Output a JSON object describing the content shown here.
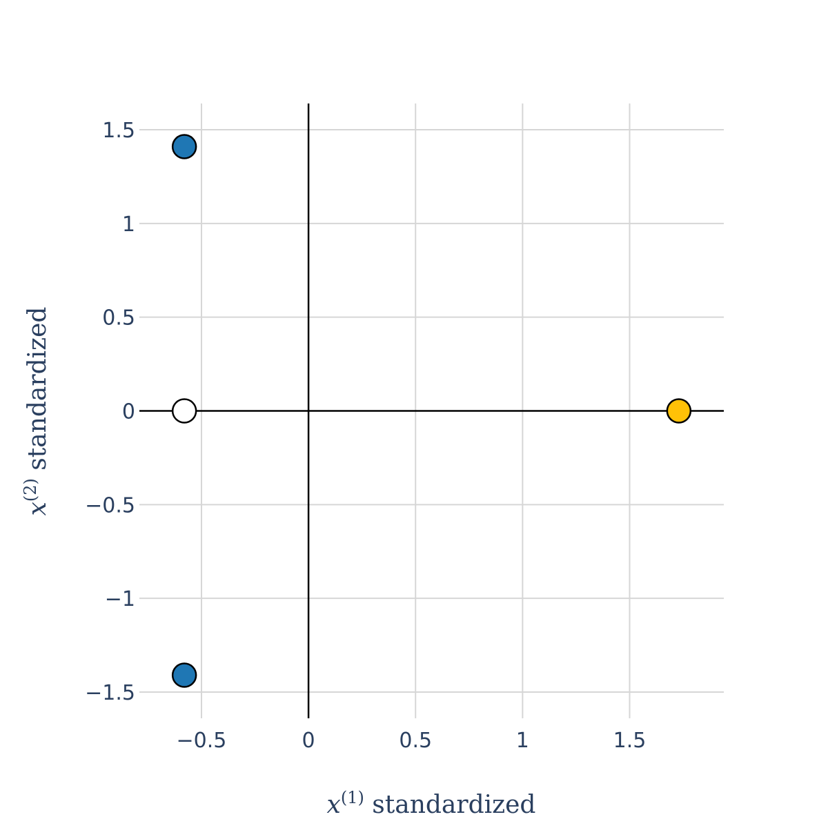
{
  "chart_data": {
    "type": "scatter",
    "xlabel": {
      "var": "x",
      "sup": "(1)",
      "text": " standardized"
    },
    "ylabel": {
      "var": "x",
      "sup": "(2)",
      "text": " standardized"
    },
    "xlim": [
      -0.79,
      1.94
    ],
    "ylim": [
      -1.64,
      1.64
    ],
    "xticks": [
      {
        "value": -0.5,
        "label": "−0.5"
      },
      {
        "value": 0,
        "label": "0"
      },
      {
        "value": 0.5,
        "label": "0.5"
      },
      {
        "value": 1,
        "label": "1"
      },
      {
        "value": 1.5,
        "label": "1.5"
      }
    ],
    "yticks": [
      {
        "value": 1.5,
        "label": "1.5"
      },
      {
        "value": 1,
        "label": "1"
      },
      {
        "value": 0.5,
        "label": "0.5"
      },
      {
        "value": 0,
        "label": "0"
      },
      {
        "value": -0.5,
        "label": "−0.5"
      },
      {
        "value": -1,
        "label": "−1"
      },
      {
        "value": -1.5,
        "label": "−1.5"
      }
    ],
    "grid": true,
    "zero_lines": true,
    "points": [
      {
        "x": -0.58,
        "y": 1.41,
        "color": "#1f77b4"
      },
      {
        "x": -0.58,
        "y": -1.41,
        "color": "#1f77b4"
      },
      {
        "x": -0.58,
        "y": 0,
        "color": "#ffffff"
      },
      {
        "x": 1.73,
        "y": 0,
        "color": "#ffc107"
      }
    ]
  }
}
